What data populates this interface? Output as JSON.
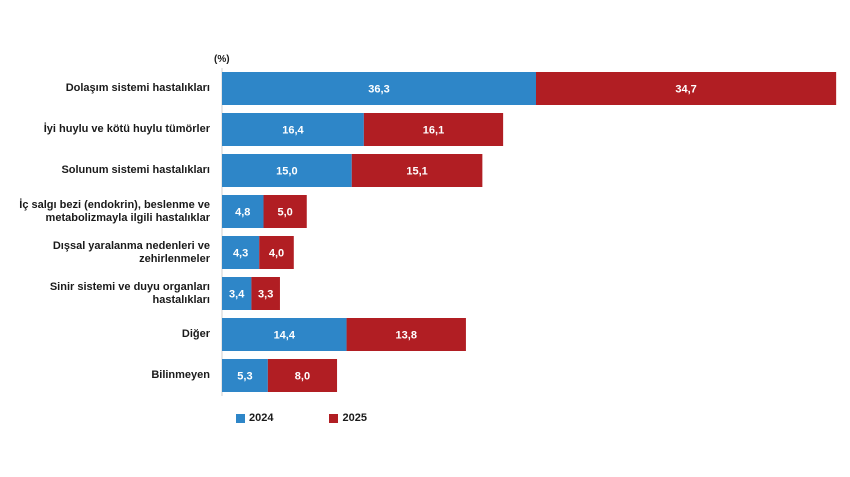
{
  "chart_data": {
    "type": "bar",
    "orientation": "horizontal",
    "stacked": true,
    "unit_label": "(%)",
    "categories": [
      "Dolaşım sistemi hastalıkları",
      "İyi huylu ve kötü huylu tümörler",
      "Solunum sistemi hastalıkları",
      "İç salgı bezi (endokrin), beslenme ve\nmetabolizmayla ilgili hastalıklar",
      "Dışsal yaralanma nedenleri ve\nzehirlenmeler",
      "Sinir sistemi ve duyu organları\nhastalıkları",
      "Diğer",
      "Bilinmeyen"
    ],
    "series": [
      {
        "name": "2024",
        "color": "#2e86c8",
        "values": [
          36.3,
          16.4,
          15.0,
          4.8,
          4.3,
          3.4,
          14.4,
          5.3
        ],
        "labels": [
          "36,3",
          "16,4",
          "15,0",
          "4,8",
          "4,3",
          "3,4",
          "14,4",
          "5,3"
        ]
      },
      {
        "name": "2025",
        "color": "#b11e23",
        "values": [
          34.7,
          16.1,
          15.1,
          5.0,
          4.0,
          3.3,
          13.8,
          8.0
        ],
        "labels": [
          "34,7",
          "16,1",
          "15,1",
          "5,0",
          "4,0",
          "3,3",
          "13,8",
          "8,0"
        ]
      }
    ],
    "legend_position": "bottom-left",
    "grid": false
  }
}
